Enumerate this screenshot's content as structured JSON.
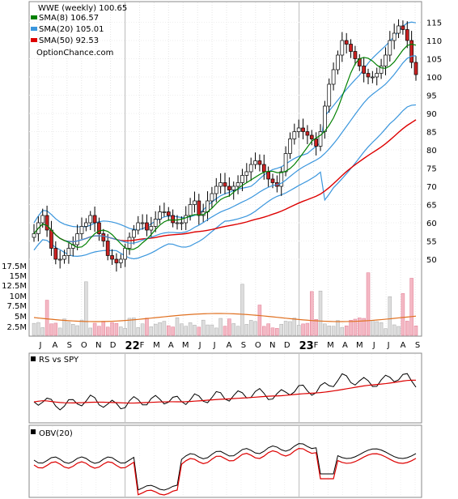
{
  "chart_data": {
    "type": "candlestick",
    "legend": {
      "title": "WWE (weekly) 100.65",
      "entries": [
        {
          "label": "SMA(8) 106.57",
          "color": "#008000"
        },
        {
          "label": "SMA(20) 105.01",
          "color": "#3a96dd"
        },
        {
          "label": "SMA(50) 92.53",
          "color": "#dd0000"
        }
      ],
      "source": "OptionChance.com"
    },
    "price_axis": {
      "ticks": [
        "115",
        "110",
        "105",
        "100",
        "95",
        "90",
        "85",
        "80",
        "75",
        "70",
        "65",
        "60",
        "55",
        "50"
      ],
      "ylim": [
        45,
        118
      ]
    },
    "volume_axis": {
      "ticks": [
        "17.5M",
        "15M",
        "12.5M",
        "10M",
        "7.5M",
        "5M",
        "2.5M"
      ],
      "ylim": [
        0,
        20
      ]
    },
    "x_labels": [
      "J",
      "A",
      "S",
      "O",
      "N",
      "D",
      "22",
      "F",
      "M",
      "A",
      "M",
      "J",
      "J",
      "A",
      "S",
      "O",
      "N",
      "D",
      "23",
      "F",
      "M",
      "A",
      "M",
      "J",
      "J",
      "A",
      "S"
    ],
    "current_price": 100.65,
    "sma8_last": 106.57,
    "sma20_last": 105.01,
    "sma50_last": 92.53,
    "price_series": [
      57,
      60,
      62,
      58,
      53,
      50,
      50,
      51,
      53,
      54,
      57,
      59,
      60,
      62,
      60,
      57,
      55,
      51,
      50,
      49,
      50,
      53,
      56,
      58,
      60,
      60,
      58,
      59,
      61,
      63,
      63,
      62,
      60,
      60,
      60,
      62,
      65,
      66,
      62,
      63,
      66,
      68,
      70,
      71,
      70,
      69,
      70,
      71,
      73,
      74,
      76,
      77,
      76,
      74,
      72,
      71,
      70,
      74,
      79,
      83,
      85,
      86,
      85,
      84,
      83,
      81,
      85,
      92,
      98,
      102,
      106,
      110,
      109,
      107,
      105,
      103,
      101,
      100,
      100,
      101,
      103,
      106,
      110,
      112,
      114,
      113,
      110,
      104,
      100.65
    ],
    "rs_panel": {
      "label": "RS vs SPY"
    },
    "obv_panel": {
      "label": "OBV(20)"
    }
  }
}
